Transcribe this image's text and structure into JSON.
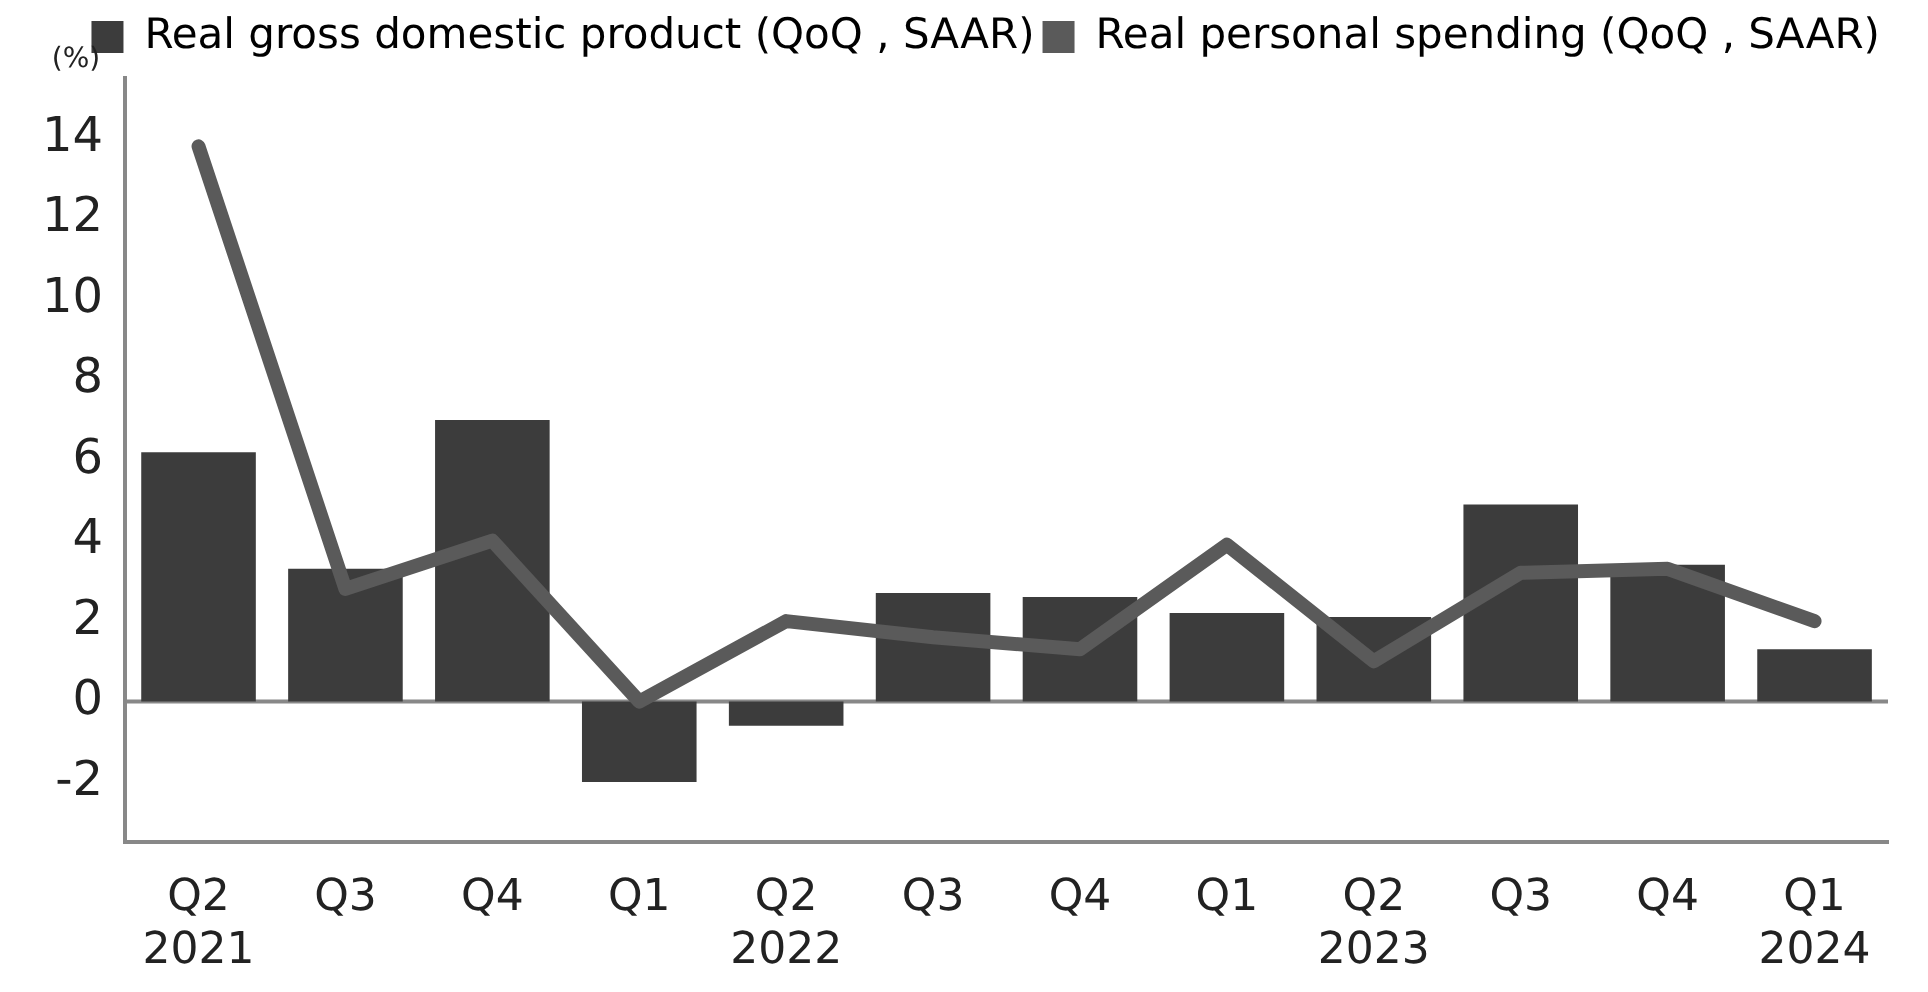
{
  "chart_data": {
    "type": "bar",
    "ylabel": "(%)",
    "categories": [
      "Q2\n2021",
      "Q3",
      "Q4",
      "Q1",
      "Q2\n2022",
      "Q3",
      "Q4",
      "Q1",
      "Q2\n2023",
      "Q3",
      "Q4",
      "Q1\n2024"
    ],
    "series": [
      {
        "name": "Real gross domestic product (QoQ , SAAR)",
        "color": "#3c3c3c",
        "values": [
          6.2,
          3.3,
          7.0,
          -2.0,
          -0.6,
          2.7,
          2.6,
          2.2,
          2.1,
          4.9,
          3.4,
          1.3
        ]
      },
      {
        "name": "Real personal spending (QoQ , SAAR)",
        "type": "line",
        "color": "#5a5a5a",
        "values": [
          13.8,
          2.8,
          4.0,
          0.0,
          2.0,
          1.6,
          1.3,
          3.9,
          1.0,
          3.2,
          3.3,
          2.0
        ]
      }
    ],
    "ylim": [
      -3.5,
      15.5
    ],
    "yticks": [
      -2,
      0,
      2,
      4,
      6,
      8,
      10,
      12,
      14
    ],
    "ref_lines": [
      {
        "axis": "y",
        "value": 0,
        "color": "#888888"
      }
    ],
    "grid": false,
    "legend": "top right",
    "marker": "none",
    "line_style": "solid"
  }
}
